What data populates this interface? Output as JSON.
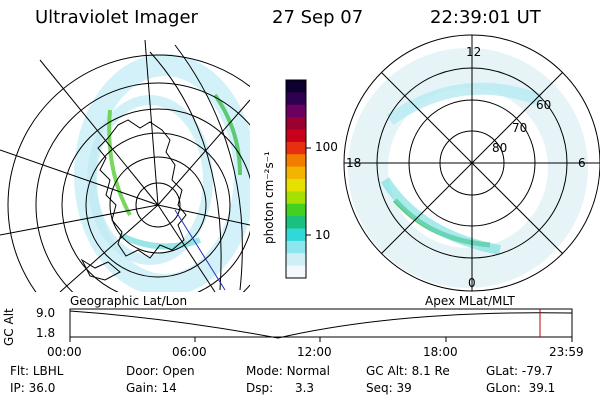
{
  "header": {
    "instrument": "Ultraviolet Imager",
    "date": "27 Sep 07",
    "time": "22:39:01 UT"
  },
  "colorbar": {
    "label": "photon cm⁻²s⁻¹",
    "ticks": [
      "100",
      "10"
    ],
    "colors": [
      "#0d0030",
      "#300050",
      "#6a0060",
      "#9a0030",
      "#c8001a",
      "#e83010",
      "#f07c00",
      "#f2b400",
      "#e6e000",
      "#a6e000",
      "#44d020",
      "#19c080",
      "#30d8d8",
      "#8ce6f0",
      "#cfeff6",
      "#f2f8fb"
    ]
  },
  "left_map": {
    "caption": "Geographic Lat/Lon"
  },
  "right_map": {
    "caption": "Apex  MLat/MLT",
    "lat_labels": [
      "60",
      "70",
      "80"
    ],
    "mlt_labels": {
      "top": "12",
      "left": "18",
      "right": "6",
      "bottom": "0"
    }
  },
  "orbit_plot": {
    "ylabel": "GC Alt",
    "yticks": [
      "9.0",
      "1.8"
    ],
    "xticks": [
      "00:00",
      "06:00",
      "12:00",
      "18:00",
      "23:59"
    ],
    "marker_color": "#c00000"
  },
  "status": {
    "row1": [
      {
        "label": "Flt:",
        "value": "LBHL"
      },
      {
        "label": "Door:",
        "value": "Open"
      },
      {
        "label": "Mode:",
        "value": "Normal"
      },
      {
        "label": "GC Alt:",
        "value": "8.1 Re"
      },
      {
        "label": "GLat:",
        "value": "-79.7"
      }
    ],
    "row2": [
      {
        "label": "IP:",
        "value": "36.0"
      },
      {
        "label": "Gain:",
        "value": "14"
      },
      {
        "label": "Dsp:",
        "value": "3.3"
      },
      {
        "label": "Seq:",
        "value": "39"
      },
      {
        "label": "GLon:",
        "value": "39.1"
      }
    ]
  }
}
